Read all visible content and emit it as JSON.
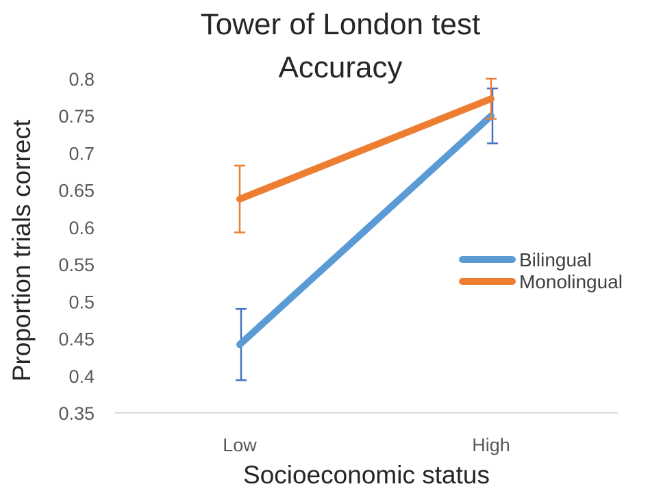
{
  "chart_data": {
    "type": "line",
    "title": "Tower of London test",
    "subtitle": "Accuracy",
    "xlabel": "Socioeconomic status",
    "ylabel": "Proportion trials correct",
    "categories": [
      "Low",
      "High"
    ],
    "ylim": [
      0.35,
      0.8
    ],
    "yticks": [
      "0.35",
      "0.4",
      "0.45",
      "0.5",
      "0.55",
      "0.6",
      "0.65",
      "0.7",
      "0.75",
      "0.8"
    ],
    "grid": false,
    "legend_position": "right",
    "series": [
      {
        "name": "Bilingual",
        "color": "#5B9BD5",
        "errorbar_color": "#4472C4",
        "values": [
          0.442,
          0.75
        ],
        "error": [
          0.048,
          0.037
        ]
      },
      {
        "name": "Monolingual",
        "color": "#ED7D31",
        "errorbar_color": "#ED7D31",
        "values": [
          0.638,
          0.773
        ],
        "error": [
          0.045,
          0.027
        ]
      }
    ]
  }
}
